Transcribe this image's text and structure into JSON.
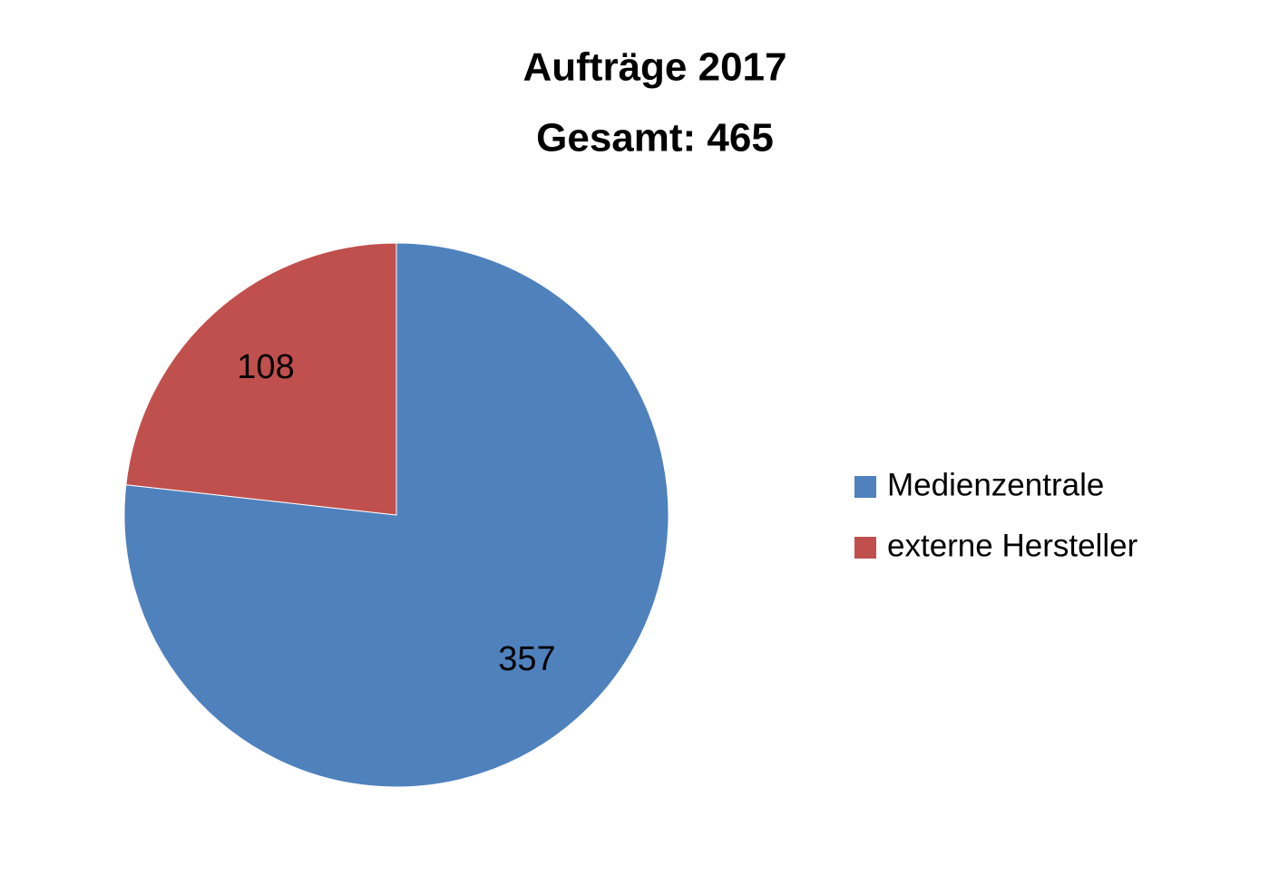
{
  "chart_data": {
    "type": "pie",
    "title": "Aufträge 2017",
    "subtitle": "Gesamt: 465",
    "categories": [
      "Medienzentrale",
      "externe Hersteller"
    ],
    "values": [
      357,
      108
    ],
    "colors": [
      "#4f81bd",
      "#c0504d"
    ],
    "legend": "right"
  }
}
